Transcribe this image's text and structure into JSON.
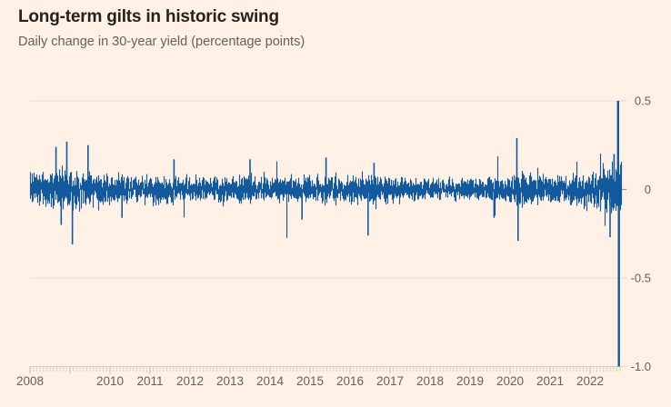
{
  "chart": {
    "title": "Long-term gilts in historic swing",
    "subtitle": "Daily change in 30-year yield (percentage points)"
  },
  "colors": {
    "background": "#FFF1E5",
    "bar": "#12599E",
    "title_text": "#26211D",
    "muted_text": "#66605C",
    "gridline": "#E9DACC",
    "zero_line": "#99918A",
    "axis_line": "#D8CABD",
    "minor_tick": "#DCCEC1",
    "year_tick": "#C4B7AA"
  },
  "chart_data": {
    "type": "bar",
    "title": "Long-term gilts in historic swing",
    "subtitle": "Daily change in 30-year yield (percentage points)",
    "series_name": "Daily change in 30-year gilt yield (percentage points)",
    "x_axis": {
      "start": 2008.0,
      "end": 2022.8,
      "tick_years": [
        2008,
        2010,
        2011,
        2012,
        2013,
        2014,
        2015,
        2016,
        2017,
        2018,
        2019,
        2020,
        2021,
        2022
      ],
      "minor_ticks": "monthly",
      "note": "2009 label omitted in source chart"
    },
    "y_axis": {
      "tick_labels": [
        "0.5",
        "0",
        "-0.5",
        "-1.0"
      ],
      "tick_values": [
        0.5,
        0,
        -0.5,
        -1.0
      ],
      "range": [
        -1.05,
        0.58
      ],
      "unit": "percentage points",
      "grid": true,
      "labels_position": "right"
    },
    "volatility_profile": [
      {
        "year": 2008.0,
        "sd": 0.046
      },
      {
        "year": 2008.8,
        "sd": 0.055
      },
      {
        "year": 2009.5,
        "sd": 0.048
      },
      {
        "year": 2010.5,
        "sd": 0.033
      },
      {
        "year": 2011.5,
        "sd": 0.036
      },
      {
        "year": 2012.5,
        "sd": 0.032
      },
      {
        "year": 2013.5,
        "sd": 0.038
      },
      {
        "year": 2014.5,
        "sd": 0.031
      },
      {
        "year": 2015.5,
        "sd": 0.038
      },
      {
        "year": 2016.5,
        "sd": 0.036
      },
      {
        "year": 2017.5,
        "sd": 0.028
      },
      {
        "year": 2018.5,
        "sd": 0.027
      },
      {
        "year": 2019.5,
        "sd": 0.03
      },
      {
        "year": 2020.2,
        "sd": 0.042
      },
      {
        "year": 2021.0,
        "sd": 0.034
      },
      {
        "year": 2022.0,
        "sd": 0.048
      },
      {
        "year": 2022.8,
        "sd": 0.07
      }
    ],
    "notable_points": [
      {
        "x": 2008.65,
        "value": 0.24
      },
      {
        "x": 2008.78,
        "value": -0.2
      },
      {
        "x": 2008.92,
        "value": 0.27
      },
      {
        "x": 2009.06,
        "value": -0.31
      },
      {
        "x": 2009.45,
        "value": 0.25
      },
      {
        "x": 2010.3,
        "value": -0.16
      },
      {
        "x": 2011.6,
        "value": 0.17
      },
      {
        "x": 2013.5,
        "value": 0.17
      },
      {
        "x": 2014.8,
        "value": -0.17
      },
      {
        "x": 2015.4,
        "value": 0.18
      },
      {
        "x": 2016.45,
        "value": -0.26
      },
      {
        "x": 2016.6,
        "value": 0.15
      },
      {
        "x": 2019.6,
        "value": -0.16
      },
      {
        "x": 2020.17,
        "value": 0.29
      },
      {
        "x": 2020.2,
        "value": -0.29
      },
      {
        "x": 2022.5,
        "value": -0.27
      },
      {
        "x": 2022.6,
        "value": 0.2
      },
      {
        "x": 2022.7,
        "value": 0.5
      },
      {
        "x": 2022.72,
        "value": -1.0
      }
    ]
  }
}
